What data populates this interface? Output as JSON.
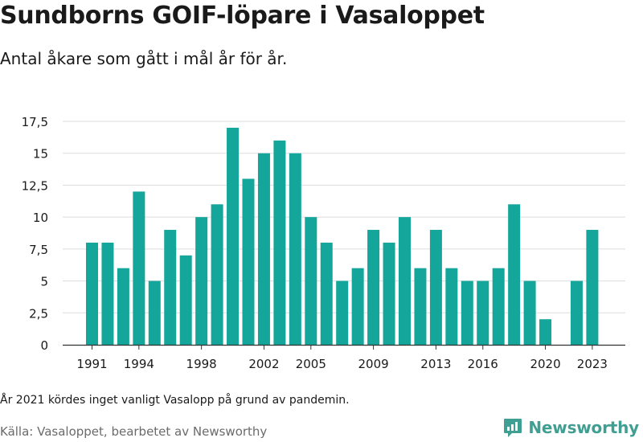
{
  "header": {
    "title": "Sundborns GOIF-löpare i Vasaloppet",
    "subtitle": "Antal åkare som gått i mål år för år."
  },
  "footer": {
    "note": "År 2021 kördes inget vanligt Vasalopp på grund av pandemin.",
    "source": "Källa: Vasaloppet, bearbetet av Newsworthy",
    "brand": "Newsworthy",
    "brand_icon": "bar-chart-logo-icon"
  },
  "colors": {
    "bar": "#14a69a",
    "grid": "#dddddd",
    "axis": "#333333",
    "text": "#1a1a1a",
    "brand": "#3f9f92"
  },
  "chart_data": {
    "type": "bar",
    "categories": [
      1991,
      1992,
      1993,
      1994,
      1995,
      1996,
      1997,
      1998,
      1999,
      2000,
      2001,
      2002,
      2003,
      2004,
      2005,
      2006,
      2007,
      2008,
      2009,
      2010,
      2011,
      2012,
      2013,
      2014,
      2015,
      2016,
      2017,
      2018,
      2019,
      2020,
      2021,
      2022,
      2023
    ],
    "values": [
      8,
      8,
      6,
      12,
      5,
      9,
      7,
      10,
      11,
      17,
      13,
      15,
      16,
      15,
      10,
      8,
      5,
      6,
      9,
      8,
      10,
      6,
      9,
      6,
      5,
      5,
      6,
      11,
      5,
      2,
      null,
      5,
      9
    ],
    "x_tick_labels": [
      "1991",
      "1994",
      "1998",
      "2002",
      "2005",
      "2009",
      "2013",
      "2016",
      "2020",
      "2023"
    ],
    "y_ticks": [
      0,
      2.5,
      5,
      7.5,
      10,
      12.5,
      15,
      17.5
    ],
    "y_tick_labels": [
      "0",
      "2,5",
      "5",
      "7,5",
      "10",
      "12,5",
      "15",
      "17,5"
    ],
    "ylim": [
      0,
      17.5
    ],
    "grid": true,
    "xlabel": "",
    "ylabel": ""
  }
}
